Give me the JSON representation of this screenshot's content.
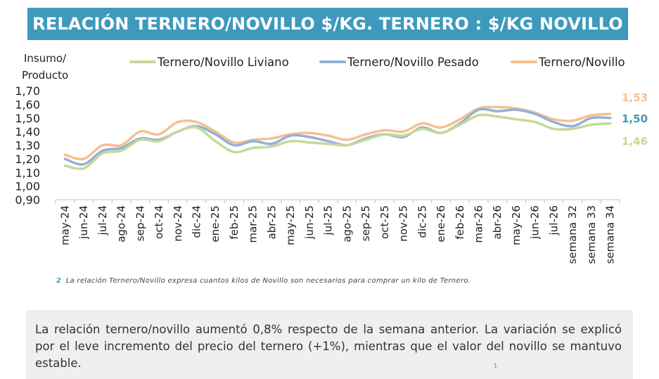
{
  "banner": {
    "title": "RELACIÓN TERNERO/NOVILLO $/KG. TERNERO : $/KG NOVILLO"
  },
  "chart_data": {
    "type": "line",
    "ylabel_line1": "Insumo/",
    "ylabel_line2": "Producto",
    "ylim": [
      0.9,
      1.7
    ],
    "yticks": [
      "1,70",
      "1,60",
      "1,50",
      "1,40",
      "1,30",
      "1,20",
      "1,10",
      "1,00",
      "0,90"
    ],
    "grid": false,
    "legend_position": "top",
    "categories": [
      "may-24",
      "jun-24",
      "jul-24",
      "ago-24",
      "sep-24",
      "oct-24",
      "nov-24",
      "dic-24",
      "ene-25",
      "feb-25",
      "mar-25",
      "abr-25",
      "may-25",
      "jun-25",
      "jul-25",
      "ago-25",
      "sep-25",
      "oct-25",
      "nov-25",
      "dic-25",
      "ene-26",
      "feb-26",
      "mar-26",
      "abr-26",
      "may-26",
      "jun-26",
      "jul-26",
      "semana 32",
      "semana 33",
      "semana 34"
    ],
    "series": [
      {
        "name": "Ternero/Novillo Liviano",
        "color": "#c5d99a",
        "values": [
          1.15,
          1.13,
          1.24,
          1.26,
          1.34,
          1.33,
          1.4,
          1.43,
          1.33,
          1.25,
          1.28,
          1.29,
          1.33,
          1.32,
          1.31,
          1.3,
          1.34,
          1.38,
          1.37,
          1.42,
          1.39,
          1.45,
          1.52,
          1.51,
          1.49,
          1.47,
          1.42,
          1.42,
          1.45,
          1.46
        ]
      },
      {
        "name": "Ternero/Novillo Pesado",
        "color": "#92b0d8",
        "values": [
          1.2,
          1.16,
          1.26,
          1.28,
          1.35,
          1.34,
          1.4,
          1.44,
          1.38,
          1.3,
          1.33,
          1.31,
          1.37,
          1.36,
          1.33,
          1.3,
          1.35,
          1.38,
          1.36,
          1.43,
          1.39,
          1.46,
          1.56,
          1.55,
          1.56,
          1.53,
          1.47,
          1.44,
          1.5,
          1.5
        ]
      },
      {
        "name": "Ternero/Novillo",
        "color": "#f6c08f",
        "values": [
          1.23,
          1.2,
          1.3,
          1.3,
          1.4,
          1.38,
          1.47,
          1.47,
          1.4,
          1.32,
          1.34,
          1.35,
          1.38,
          1.39,
          1.37,
          1.34,
          1.38,
          1.41,
          1.4,
          1.46,
          1.43,
          1.49,
          1.57,
          1.58,
          1.57,
          1.54,
          1.49,
          1.48,
          1.52,
          1.53
        ]
      }
    ],
    "end_labels": [
      {
        "text": "1,53",
        "color": "#f6c08f"
      },
      {
        "text": "1,50",
        "color": "#3e99bd"
      },
      {
        "text": "1,46",
        "color": "#c5d99a"
      }
    ]
  },
  "footnote": {
    "number": "2",
    "text": "La relación Ternero/Novillo expresa cuantos kilos de Novillo son necesarios para comprar un kilo de Ternero."
  },
  "summary": {
    "text": "La relación ternero/novillo aumentó 0,8% respecto de la semana anterior. La variación se explicó por el leve incremento del precio del ternero (+1%), mientras que el valor del novillo se mantuvo estable."
  },
  "page_number": "1"
}
